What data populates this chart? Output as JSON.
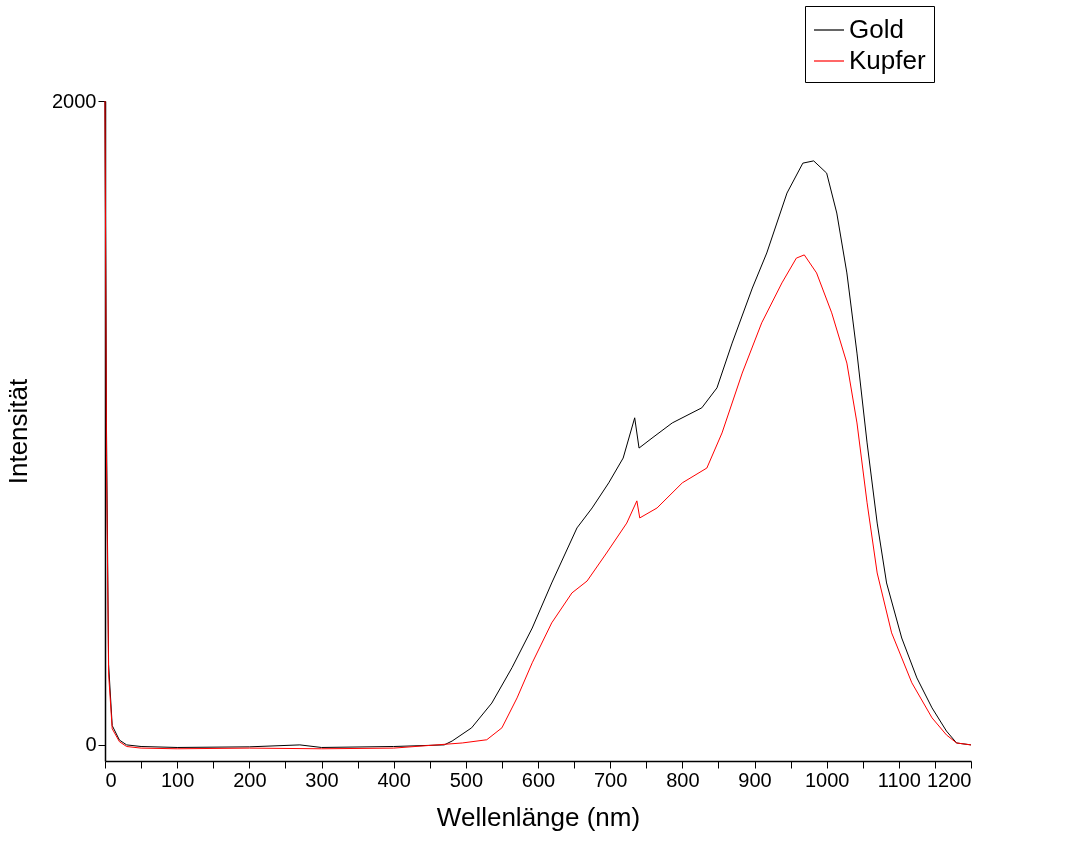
{
  "chart_data": {
    "type": "line",
    "xlabel": "Wellenlänge (nm)",
    "ylabel": "Intensität",
    "xlim": [
      0,
      1200
    ],
    "ylim": [
      -50,
      2000
    ],
    "xticks": [
      0,
      {
        "value": 50,
        "label": null
      },
      100,
      {
        "value": 150,
        "label": null
      },
      200,
      {
        "value": 250,
        "label": null
      },
      300,
      {
        "value": 350,
        "label": null
      },
      400,
      {
        "value": 450,
        "label": null
      },
      500,
      {
        "value": 550,
        "label": null
      },
      600,
      {
        "value": 650,
        "label": null
      },
      700,
      {
        "value": 750,
        "label": null
      },
      800,
      {
        "value": 850,
        "label": null
      },
      900,
      {
        "value": 950,
        "label": null
      },
      1000,
      {
        "value": 1050,
        "label": null
      },
      1100,
      {
        "value": 1150,
        "label": null
      },
      1200
    ],
    "yticks": [
      0,
      2000
    ],
    "grid": false,
    "legend": "top right",
    "marker": "none",
    "line_style": "solid",
    "series": [
      {
        "name": "Gold",
        "color": "#000000",
        "x": [
          0,
          2,
          5,
          10,
          20,
          30,
          50,
          100,
          200,
          270,
          300,
          400,
          470,
          481,
          508,
          536,
          564,
          592,
          619,
          654,
          675,
          698,
          718,
          734,
          740,
          758,
          786,
          827,
          848,
          869,
          897,
          917,
          945,
          967,
          982,
          1000,
          1014,
          1028,
          1042,
          1056,
          1070,
          1083,
          1104,
          1125,
          1146,
          1166,
          1180,
          1200
        ],
        "values": [
          2000,
          1000,
          250,
          60,
          15,
          0,
          -5,
          -8,
          -6,
          0,
          -8,
          -5,
          0,
          12,
          53,
          130,
          240,
          363,
          503,
          674,
          736,
          814,
          891,
          1016,
          922,
          953,
          1000,
          1047,
          1109,
          1248,
          1419,
          1528,
          1714,
          1807,
          1814,
          1776,
          1652,
          1466,
          1217,
          938,
          689,
          503,
          332,
          208,
          115,
          43,
          6,
          0
        ]
      },
      {
        "name": "Kupfer",
        "color": "#ff0000",
        "x": [
          0,
          2,
          5,
          10,
          20,
          30,
          50,
          100,
          200,
          300,
          400,
          495,
          529,
          550,
          571,
          592,
          619,
          647,
          668,
          695,
          723,
          737,
          741,
          765,
          800,
          834,
          855,
          883,
          910,
          938,
          958,
          969,
          986,
          1007,
          1028,
          1042,
          1056,
          1070,
          1090,
          1118,
          1146,
          1166,
          1180,
          1200
        ],
        "values": [
          2000,
          900,
          220,
          50,
          10,
          -5,
          -10,
          -12,
          -10,
          -12,
          -10,
          6,
          16,
          53,
          146,
          255,
          379,
          472,
          509,
          596,
          689,
          758,
          705,
          736,
          814,
          860,
          969,
          1155,
          1311,
          1435,
          1512,
          1522,
          1466,
          1342,
          1186,
          1000,
          752,
          534,
          348,
          193,
          84,
          31,
          6,
          0
        ]
      }
    ]
  }
}
